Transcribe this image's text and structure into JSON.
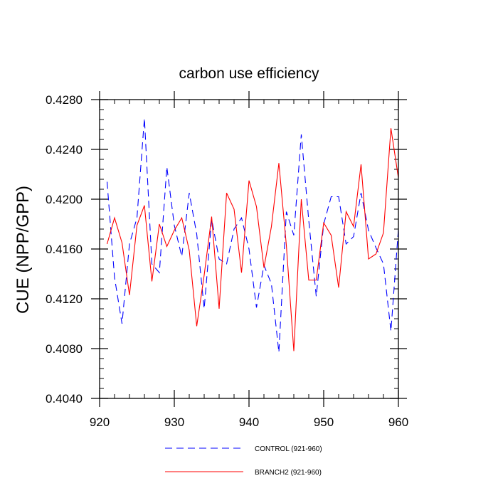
{
  "chart_data": {
    "type": "line",
    "title": "carbon use efficiency",
    "xlabel": "",
    "ylabel": "CUE  (NPP/GPP)",
    "xlim": [
      920,
      960
    ],
    "ylim": [
      0.404,
      0.428
    ],
    "x_ticks": [
      920,
      930,
      940,
      950,
      960
    ],
    "x_tick_labels": [
      "920",
      "930",
      "940",
      "950",
      "960"
    ],
    "y_ticks": [
      0.404,
      0.408,
      0.412,
      0.416,
      0.42,
      0.424,
      0.428
    ],
    "y_tick_labels": [
      "0.4040",
      "0.4080",
      "0.4120",
      "0.4160",
      "0.4200",
      "0.4240",
      "0.4280"
    ],
    "grid": false,
    "legend_position": "bottom-center",
    "x": [
      921,
      922,
      923,
      924,
      925,
      926,
      927,
      928,
      929,
      930,
      931,
      932,
      933,
      934,
      935,
      936,
      937,
      938,
      939,
      940,
      941,
      942,
      943,
      944,
      945,
      946,
      947,
      948,
      949,
      950,
      951,
      952,
      953,
      954,
      955,
      956,
      957,
      958,
      959,
      960
    ],
    "series": [
      {
        "name": "CONTROL (921-960)",
        "color": "#0000ff",
        "style": "dashed",
        "values": [
          0.4214,
          0.4137,
          0.41,
          0.4164,
          0.4185,
          0.4265,
          0.4148,
          0.4141,
          0.4226,
          0.4179,
          0.4154,
          0.4205,
          0.4172,
          0.4112,
          0.4184,
          0.4152,
          0.4148,
          0.4176,
          0.4185,
          0.416,
          0.4113,
          0.4147,
          0.4132,
          0.4077,
          0.419,
          0.4171,
          0.4252,
          0.4183,
          0.4122,
          0.418,
          0.4202,
          0.4202,
          0.4164,
          0.417,
          0.4205,
          0.4175,
          0.4161,
          0.4148,
          0.4094,
          0.4176
        ]
      },
      {
        "name": "BRANCH2 (921-960)",
        "color": "#ff0000",
        "style": "solid",
        "values": [
          0.4164,
          0.4185,
          0.4165,
          0.4123,
          0.4179,
          0.4195,
          0.4134,
          0.418,
          0.4162,
          0.4175,
          0.4185,
          0.4159,
          0.4098,
          0.4139,
          0.4186,
          0.4112,
          0.4205,
          0.4192,
          0.4141,
          0.4215,
          0.4194,
          0.4145,
          0.4178,
          0.4229,
          0.4163,
          0.4078,
          0.42,
          0.4135,
          0.4135,
          0.4181,
          0.4171,
          0.4129,
          0.419,
          0.4178,
          0.4228,
          0.4152,
          0.4156,
          0.4173,
          0.4257,
          0.4217
        ]
      }
    ]
  }
}
